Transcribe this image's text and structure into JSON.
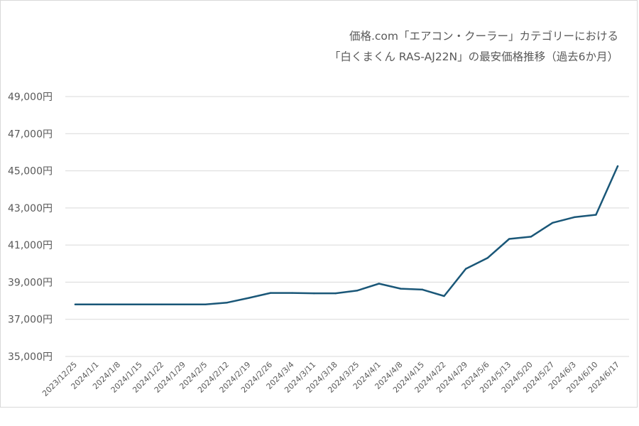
{
  "chart_data": {
    "type": "line",
    "title_lines": [
      "価格.com「エアコン・クーラー」カテゴリーにおける",
      "「白くまくん RAS-AJ22N」の最安価格推移（過去6か月）"
    ],
    "xlabel": "",
    "ylabel": "",
    "y_unit": "円",
    "ylim": [
      35000,
      49000
    ],
    "yticks": [
      35000,
      37000,
      39000,
      41000,
      43000,
      45000,
      47000,
      49000
    ],
    "ytick_labels": [
      "35,000円",
      "37,000円",
      "39,000円",
      "41,000円",
      "43,000円",
      "45,000円",
      "47,000円",
      "49,000円"
    ],
    "grid": true,
    "legend": "none",
    "line_color": "#1a5778",
    "categories": [
      "2023/12/25",
      "2024/1/1",
      "2024/1/8",
      "2024/1/15",
      "2024/1/22",
      "2024/1/29",
      "2024/2/5",
      "2024/2/12",
      "2024/2/19",
      "2024/2/26",
      "2024/3/4",
      "2024/3/11",
      "2024/3/18",
      "2024/3/25",
      "2024/4/1",
      "2024/4/8",
      "2024/4/15",
      "2024/4/22",
      "2024/4/29",
      "2024/5/6",
      "2024/5/13",
      "2024/5/20",
      "2024/5/27",
      "2024/6/3",
      "2024/6/10",
      "2024/6/17"
    ],
    "series": [
      {
        "values": [
          37800,
          37800,
          37800,
          37800,
          37800,
          37800,
          37800,
          37900,
          38150,
          38420,
          38420,
          38400,
          38400,
          38550,
          38920,
          38650,
          38600,
          38250,
          39720,
          40300,
          41330,
          41450,
          42200,
          42500,
          42630,
          45250
        ]
      }
    ]
  }
}
